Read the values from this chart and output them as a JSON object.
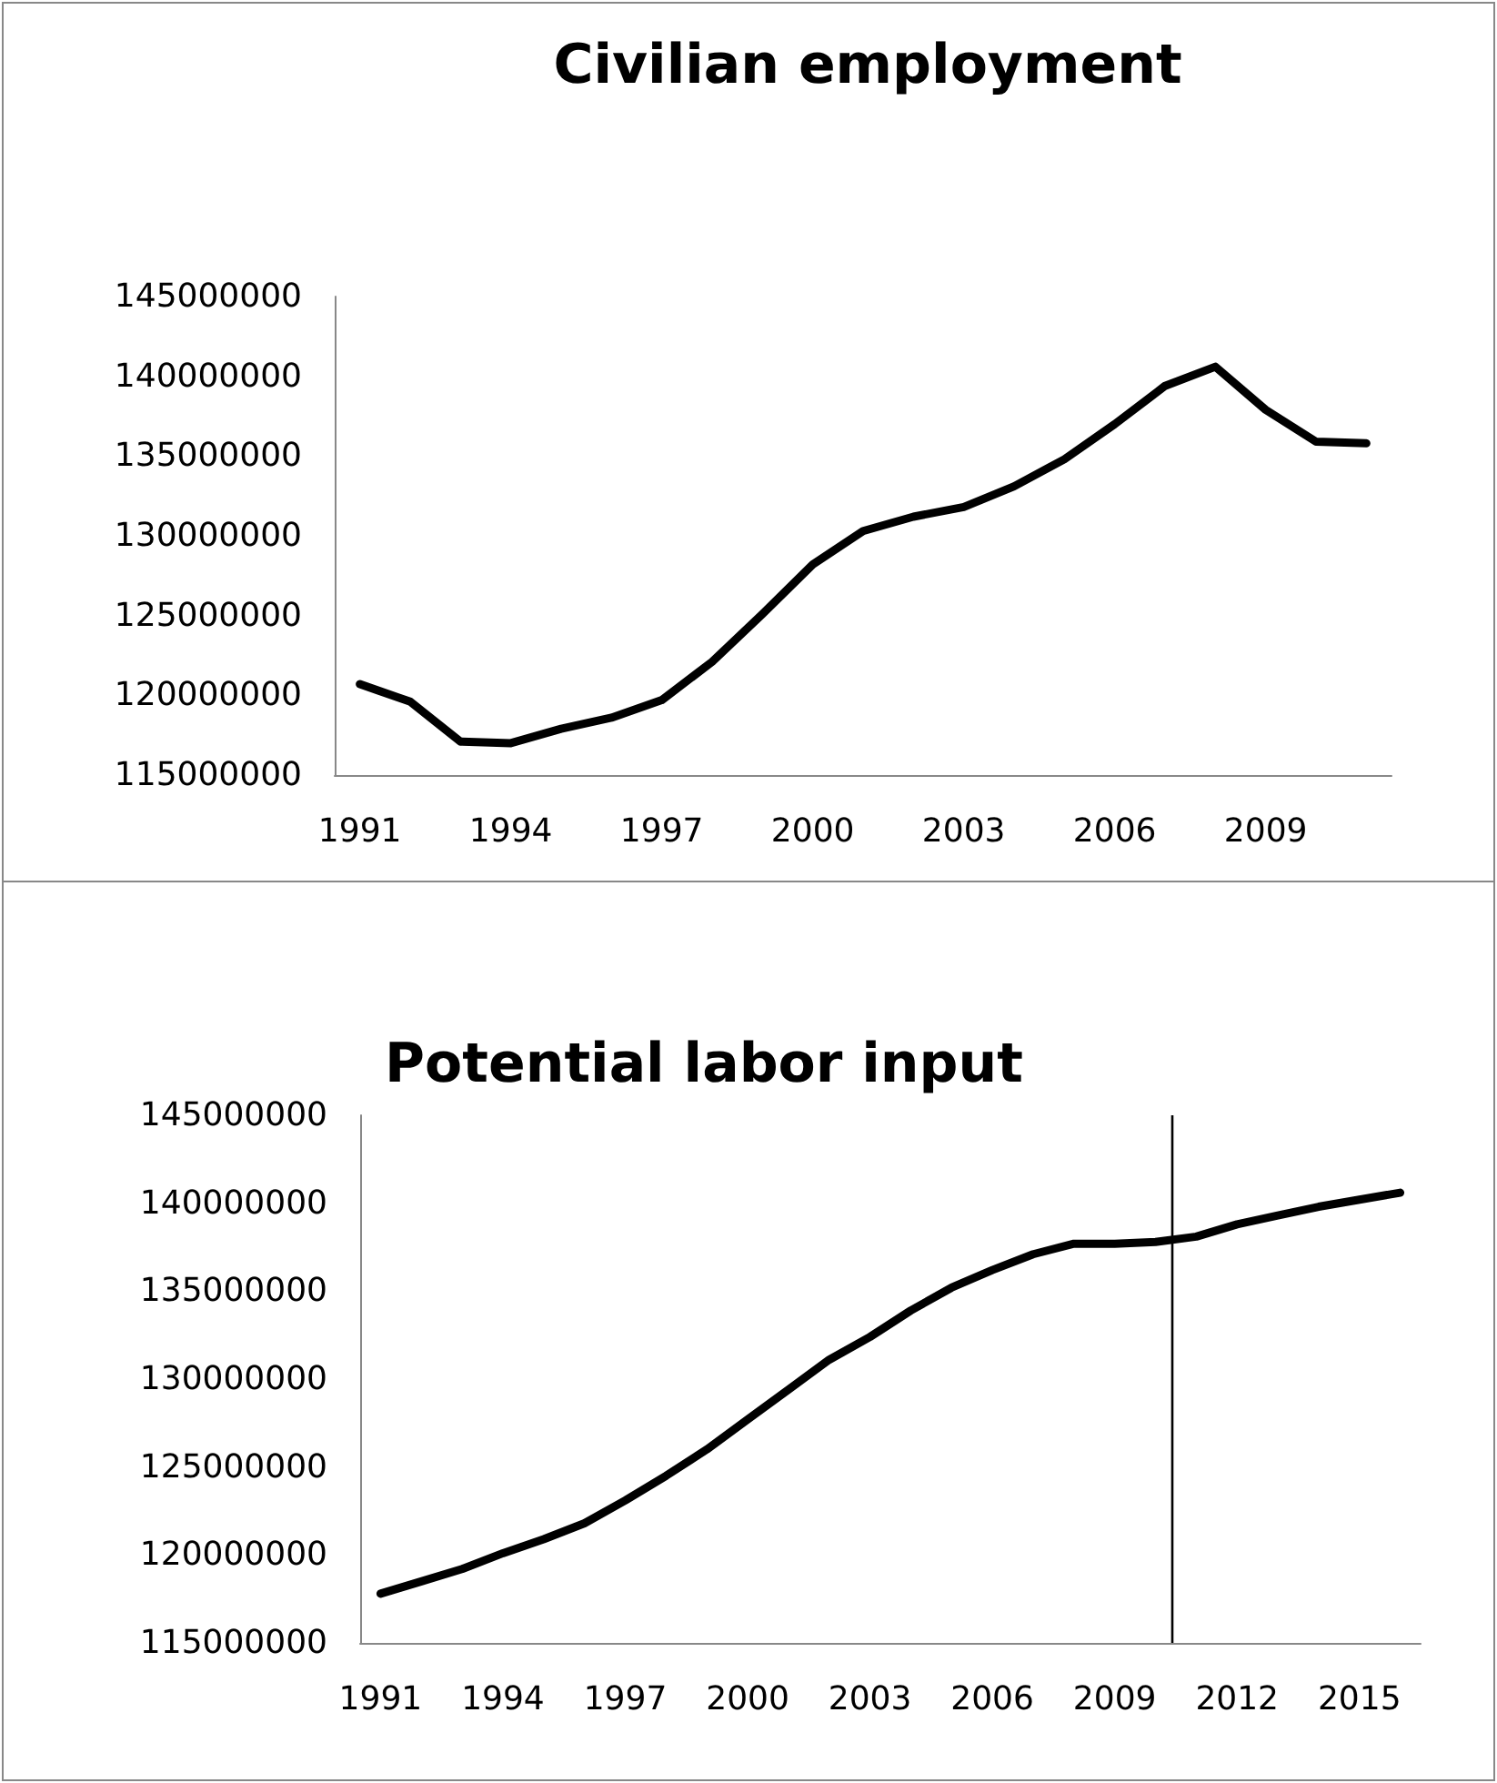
{
  "chart_data": [
    {
      "type": "line",
      "title": "Civilian employment",
      "x": [
        1991,
        1992,
        1993,
        1994,
        1995,
        1996,
        1997,
        1998,
        1999,
        2000,
        2001,
        2002,
        2003,
        2004,
        2005,
        2006,
        2007,
        2008,
        2009,
        2010,
        2011
      ],
      "series": [
        {
          "color": "#000000",
          "values": [
            120700000,
            119600000,
            117100000,
            117000000,
            117900000,
            118600000,
            119700000,
            122100000,
            125100000,
            128200000,
            130300000,
            131200000,
            131800000,
            133100000,
            134800000,
            137000000,
            139400000,
            140600000,
            137900000,
            135900000,
            135800000
          ]
        }
      ],
      "xlim": [
        1990.5,
        2011.5
      ],
      "xticks": [
        1991,
        1994,
        1997,
        2000,
        2003,
        2006,
        2009
      ],
      "ylim": [
        115000000,
        145000000
      ],
      "yticks": [
        115000000,
        120000000,
        125000000,
        130000000,
        135000000,
        140000000,
        145000000
      ],
      "grid": false,
      "marker": "none",
      "line_style": "solid"
    },
    {
      "type": "line",
      "title": "Potential labor input",
      "x": [
        1991,
        1992,
        1993,
        1994,
        1995,
        1996,
        1997,
        1998,
        1999,
        2000,
        2001,
        2002,
        2003,
        2004,
        2005,
        2006,
        2007,
        2008,
        2009,
        2010,
        2011,
        2012,
        2013,
        2014,
        2015,
        2016
      ],
      "series": [
        {
          "color": "#000000",
          "values": [
            117800000,
            118500000,
            119200000,
            120100000,
            120900000,
            121800000,
            123100000,
            124500000,
            126000000,
            127700000,
            129400000,
            131100000,
            132400000,
            133900000,
            135200000,
            136200000,
            137100000,
            137700000,
            137700000,
            137800000,
            138100000,
            138800000,
            139300000,
            139800000,
            140200000,
            140600000
          ]
        }
      ],
      "xlim": [
        1990.5,
        2016.5
      ],
      "xticks": [
        1991,
        1994,
        1997,
        2000,
        2003,
        2006,
        2009,
        2012,
        2015
      ],
      "ylim": [
        115000000,
        145000000
      ],
      "yticks": [
        115000000,
        120000000,
        125000000,
        130000000,
        135000000,
        140000000,
        145000000
      ],
      "ref_lines": [
        {
          "axis": "x",
          "value": 2010.4,
          "color": "#000000",
          "line_style": "solid"
        }
      ],
      "grid": false,
      "marker": "none",
      "line_style": "solid"
    }
  ]
}
